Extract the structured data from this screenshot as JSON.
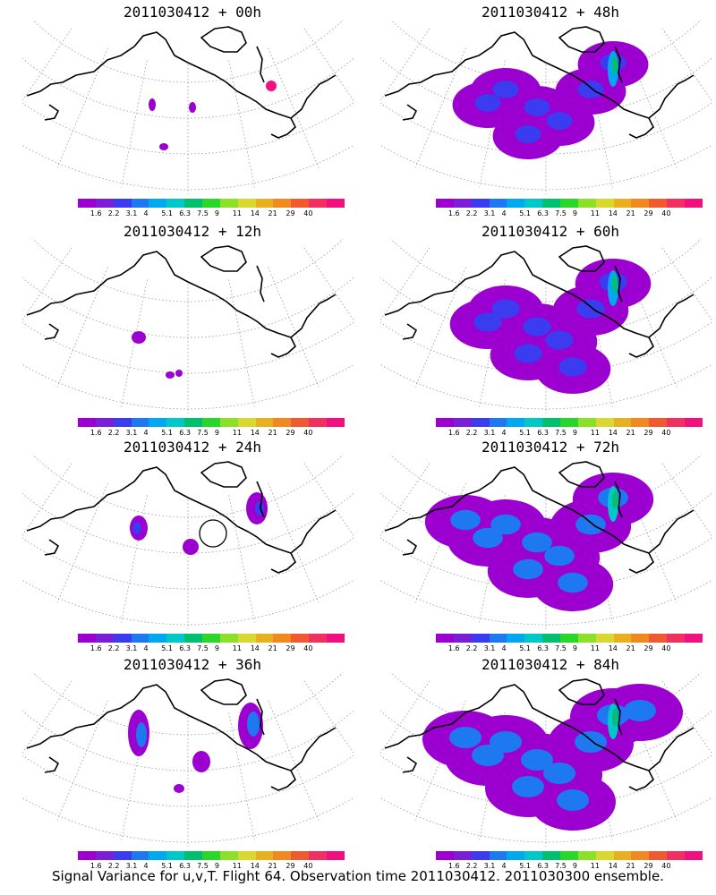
{
  "chart_data": {
    "type": "contour-map",
    "caption": "Signal Variance for u,v,T. Flight 64. Observation time 2011030412. 2011030300 ensemble.",
    "colorbar": {
      "levels": [
        "1.6",
        "2.2",
        "3.1",
        "4",
        "5.1",
        "6.3",
        "7.5",
        "9",
        "11",
        "14",
        "21",
        "29",
        "40"
      ],
      "colors": [
        "#9b00d0",
        "#7a1fd6",
        "#3b3bf0",
        "#1e78f0",
        "#00a8f0",
        "#00c8c8",
        "#00c070",
        "#2ad62a",
        "#8ce02a",
        "#d8d830",
        "#e8b020",
        "#f08a20",
        "#f05a30",
        "#f03060",
        "#f01080"
      ]
    },
    "panels": [
      {
        "title": "2011030412 + 00h",
        "lead_hours": 0
      },
      {
        "title": "2011030412 + 48h",
        "lead_hours": 48
      },
      {
        "title": "2011030412 + 12h",
        "lead_hours": 12
      },
      {
        "title": "2011030412 + 60h",
        "lead_hours": 60
      },
      {
        "title": "2011030412 + 24h",
        "lead_hours": 24
      },
      {
        "title": "2011030412 + 72h",
        "lead_hours": 72
      },
      {
        "title": "2011030412 + 36h",
        "lead_hours": 36
      },
      {
        "title": "2011030412 + 84h",
        "lead_hours": 84
      }
    ]
  }
}
